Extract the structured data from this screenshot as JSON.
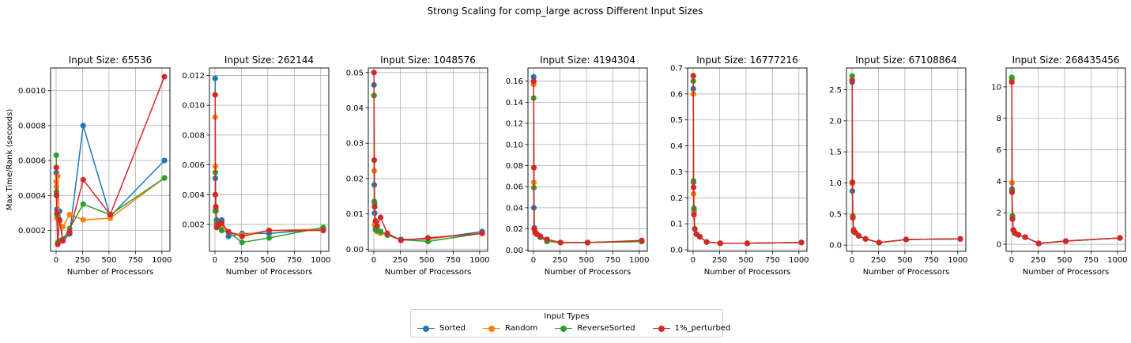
{
  "chart_data": {
    "suptitle": "Strong Scaling for comp_large across Different Input Sizes",
    "legend": {
      "title": "Input Types",
      "placement": "bottom-center",
      "entries": [
        {
          "name": "Sorted",
          "color": "#1f77b4"
        },
        {
          "name": "Random",
          "color": "#ff7f0e"
        },
        {
          "name": "ReverseSorted",
          "color": "#2ca02c"
        },
        {
          "name": "1%_perturbed",
          "color": "#d62728"
        }
      ]
    },
    "x_values": [
      2,
      4,
      8,
      16,
      32,
      64,
      128,
      256,
      512,
      1024
    ],
    "charts": [
      {
        "type": "line",
        "title": "Input Size: 65536",
        "xlabel": "Number of Processors",
        "ylabel": "Max Time/Rank (seconds)",
        "xlim": [
          -52,
          1076
        ],
        "ylim": [
          8e-05,
          0.00113
        ],
        "xticks": [
          0,
          250,
          500,
          750,
          1000
        ],
        "xtick_labels": [
          "0",
          "250",
          "500",
          "750",
          "1000"
        ],
        "yticks": [
          0.0002,
          0.0004,
          0.0006,
          0.0008,
          0.001
        ],
        "ytick_labels": [
          "0.0002",
          "0.0004",
          "0.0006",
          "0.0008",
          "0.0010"
        ],
        "grid": true,
        "series": [
          {
            "name": "Sorted",
            "values": [
              0.00053,
              0.00042,
              0.00032,
              0.0003,
              0.00031,
              0.00014,
              0.00018,
              0.0008,
              0.00028,
              0.0006
            ]
          },
          {
            "name": "Random",
            "values": [
              0.00048,
              0.00045,
              0.00027,
              0.00051,
              0.00025,
              0.00022,
              0.00029,
              0.00026,
              0.00027,
              0.0005
            ]
          },
          {
            "name": "ReverseSorted",
            "values": [
              0.00063,
              0.00042,
              0.00029,
              0.00013,
              0.00014,
              0.00015,
              0.00021,
              0.00035,
              0.00029,
              0.0005
            ]
          },
          {
            "name": "1%_perturbed",
            "values": [
              0.00056,
              0.0004,
              0.0003,
              0.00012,
              0.00026,
              0.00014,
              0.00019,
              0.00049,
              0.00029,
              0.00108
            ]
          }
        ]
      },
      {
        "type": "line",
        "title": "Input Size: 262144",
        "xlabel": "Number of Processors",
        "ylabel": "",
        "xlim": [
          -52,
          1076
        ],
        "ylim": [
          0.0002,
          0.0125
        ],
        "xticks": [
          0,
          250,
          500,
          750,
          1000
        ],
        "xtick_labels": [
          "0",
          "250",
          "500",
          "750",
          "1000"
        ],
        "yticks": [
          0.002,
          0.004,
          0.006,
          0.008,
          0.01,
          0.012
        ],
        "ytick_labels": [
          "0.002",
          "0.004",
          "0.006",
          "0.008",
          "0.010",
          "0.012"
        ],
        "grid": true,
        "series": [
          {
            "name": "Sorted",
            "values": [
              0.0118,
              0.0051,
              0.0029,
              0.0023,
              0.0022,
              0.0023,
              0.0012,
              0.0014,
              0.0014,
              0.0017
            ]
          },
          {
            "name": "Random",
            "values": [
              0.0092,
              0.0059,
              0.003,
              0.002,
              0.002,
              0.0019,
              0.0015,
              0.0013,
              0.0016,
              0.0017
            ]
          },
          {
            "name": "ReverseSorted",
            "values": [
              0.0029,
              0.0055,
              0.003,
              0.0021,
              0.0019,
              0.0016,
              0.0015,
              0.0008,
              0.0011,
              0.0018
            ]
          },
          {
            "name": "1%_perturbed",
            "values": [
              0.0107,
              0.004,
              0.0032,
              0.0018,
              0.002,
              0.0021,
              0.0015,
              0.0012,
              0.0016,
              0.0016
            ]
          }
        ]
      },
      {
        "type": "line",
        "title": "Input Size: 1048576",
        "xlabel": "Number of Processors",
        "ylabel": "",
        "xlim": [
          -52,
          1076
        ],
        "ylim": [
          -0.0006,
          0.0513
        ],
        "xticks": [
          0,
          250,
          500,
          750,
          1000
        ],
        "xtick_labels": [
          "0",
          "250",
          "500",
          "750",
          "1000"
        ],
        "yticks": [
          0.0,
          0.01,
          0.02,
          0.03,
          0.04,
          0.05
        ],
        "ytick_labels": [
          "0.00",
          "0.01",
          "0.02",
          "0.03",
          "0.04",
          "0.05"
        ],
        "grid": true,
        "series": [
          {
            "name": "Sorted",
            "values": [
              0.0465,
              0.0182,
              0.0102,
              0.0055,
              0.005,
              0.005,
              0.004,
              0.0028,
              0.0028,
              0.005
            ]
          },
          {
            "name": "Random",
            "values": [
              0.0435,
              0.0222,
              0.007,
              0.0068,
              0.005,
              0.0045,
              0.004,
              0.0026,
              0.003,
              0.0045
            ]
          },
          {
            "name": "ReverseSorted",
            "values": [
              0.0435,
              0.0135,
              0.013,
              0.006,
              0.0053,
              0.005,
              0.004,
              0.0027,
              0.0022,
              0.0045
            ]
          },
          {
            "name": "1%_perturbed",
            "values": [
              0.05,
              0.0252,
              0.012,
              0.008,
              0.0065,
              0.009,
              0.0045,
              0.0025,
              0.0032,
              0.0045
            ]
          }
        ]
      },
      {
        "type": "line",
        "title": "Input Size: 4194304",
        "xlabel": "Number of Processors",
        "ylabel": "",
        "xlim": [
          -52,
          1076
        ],
        "ylim": [
          -0.0013,
          0.1725
        ],
        "xticks": [
          0,
          250,
          500,
          750,
          1000
        ],
        "xtick_labels": [
          "0",
          "250",
          "500",
          "750",
          "1000"
        ],
        "yticks": [
          0.0,
          0.02,
          0.04,
          0.06,
          0.08,
          0.1,
          0.12,
          0.14,
          0.16
        ],
        "ytick_labels": [
          "0.00",
          "0.02",
          "0.04",
          "0.06",
          "0.08",
          "0.10",
          "0.12",
          "0.14",
          "0.16"
        ],
        "grid": true,
        "series": [
          {
            "name": "Sorted",
            "values": [
              0.164,
              0.04,
              0.021,
              0.016,
              0.015,
              0.013,
              0.01,
              0.007,
              0.007,
              0.008
            ]
          },
          {
            "name": "Random",
            "values": [
              0.157,
              0.064,
              0.02,
              0.016,
              0.015,
              0.013,
              0.01,
              0.007,
              0.007,
              0.008
            ]
          },
          {
            "name": "ReverseSorted",
            "values": [
              0.144,
              0.059,
              0.02,
              0.017,
              0.015,
              0.012,
              0.008,
              0.007,
              0.007,
              0.008
            ]
          },
          {
            "name": "1%_perturbed",
            "values": [
              0.16,
              0.078,
              0.02,
              0.017,
              0.015,
              0.013,
              0.01,
              0.007,
              0.007,
              0.009
            ]
          }
        ]
      },
      {
        "type": "line",
        "title": "Input Size: 16777216",
        "xlabel": "Number of Processors",
        "ylabel": "",
        "xlim": [
          -52,
          1076
        ],
        "ylim": [
          -0.006,
          0.7
        ],
        "xticks": [
          0,
          250,
          500,
          750,
          1000
        ],
        "xtick_labels": [
          "0",
          "250",
          "500",
          "750",
          "1000"
        ],
        "yticks": [
          0.0,
          0.1,
          0.2,
          0.3,
          0.4,
          0.5,
          0.6,
          0.7
        ],
        "ytick_labels": [
          "0.0",
          "0.1",
          "0.2",
          "0.3",
          "0.4",
          "0.5",
          "0.6",
          "0.7"
        ],
        "grid": true,
        "series": [
          {
            "name": "Sorted",
            "values": [
              0.62,
              0.26,
              0.15,
              0.08,
              0.06,
              0.05,
              0.03,
              0.025,
              0.025,
              0.028
            ]
          },
          {
            "name": "Random",
            "values": [
              0.6,
              0.215,
              0.14,
              0.08,
              0.06,
              0.05,
              0.03,
              0.025,
              0.025,
              0.028
            ]
          },
          {
            "name": "ReverseSorted",
            "values": [
              0.65,
              0.265,
              0.16,
              0.08,
              0.06,
              0.05,
              0.03,
              0.025,
              0.025,
              0.028
            ]
          },
          {
            "name": "1%_perturbed",
            "values": [
              0.67,
              0.24,
              0.135,
              0.08,
              0.06,
              0.05,
              0.03,
              0.025,
              0.025,
              0.028
            ]
          }
        ]
      },
      {
        "type": "line",
        "title": "Input Size: 67108864",
        "xlabel": "Number of Processors",
        "ylabel": "",
        "xlim": [
          -52,
          1076
        ],
        "ylim": [
          -0.1,
          2.85
        ],
        "xticks": [
          0,
          250,
          500,
          750,
          1000
        ],
        "xtick_labels": [
          "0",
          "250",
          "500",
          "750",
          "1000"
        ],
        "yticks": [
          0.0,
          0.5,
          1.0,
          1.5,
          2.0,
          2.5
        ],
        "ytick_labels": [
          "0.0",
          "0.5",
          "1.0",
          "1.5",
          "2.0",
          "2.5"
        ],
        "grid": true,
        "series": [
          {
            "name": "Sorted",
            "values": [
              2.62,
              0.87,
              0.45,
              0.25,
              0.2,
              0.15,
              0.1,
              0.04,
              0.09,
              0.1
            ]
          },
          {
            "name": "Random",
            "values": [
              2.65,
              0.99,
              0.48,
              0.24,
              0.2,
              0.15,
              0.1,
              0.04,
              0.09,
              0.1
            ]
          },
          {
            "name": "ReverseSorted",
            "values": [
              2.72,
              1.01,
              0.46,
              0.22,
              0.2,
              0.15,
              0.1,
              0.04,
              0.09,
              0.1
            ]
          },
          {
            "name": "1%_perturbed",
            "values": [
              2.65,
              1.01,
              0.44,
              0.23,
              0.2,
              0.15,
              0.1,
              0.04,
              0.09,
              0.1
            ]
          }
        ]
      },
      {
        "type": "line",
        "title": "Input Size: 268435456",
        "xlabel": "Number of Processors",
        "ylabel": "",
        "xlim": [
          -52,
          1076
        ],
        "ylim": [
          -0.45,
          11.2
        ],
        "xticks": [
          0,
          250,
          500,
          750,
          1000
        ],
        "xtick_labels": [
          "0",
          "250",
          "500",
          "750",
          "1000"
        ],
        "yticks": [
          0,
          2,
          4,
          6,
          8,
          10
        ],
        "ytick_labels": [
          "0",
          "2",
          "4",
          "6",
          "8",
          "10"
        ],
        "grid": true,
        "series": [
          {
            "name": "Sorted",
            "values": [
              10.5,
              3.5,
              1.6,
              0.9,
              0.7,
              0.6,
              0.45,
              0.05,
              0.2,
              0.4
            ]
          },
          {
            "name": "Random",
            "values": [
              10.4,
              3.9,
              1.7,
              0.9,
              0.7,
              0.6,
              0.45,
              0.05,
              0.2,
              0.4
            ]
          },
          {
            "name": "ReverseSorted",
            "values": [
              10.6,
              3.4,
              1.8,
              0.9,
              0.7,
              0.6,
              0.45,
              0.05,
              0.2,
              0.4
            ]
          },
          {
            "name": "1%_perturbed",
            "values": [
              10.3,
              3.3,
              1.6,
              0.9,
              0.7,
              0.6,
              0.45,
              0.05,
              0.2,
              0.4
            ]
          }
        ]
      }
    ]
  }
}
